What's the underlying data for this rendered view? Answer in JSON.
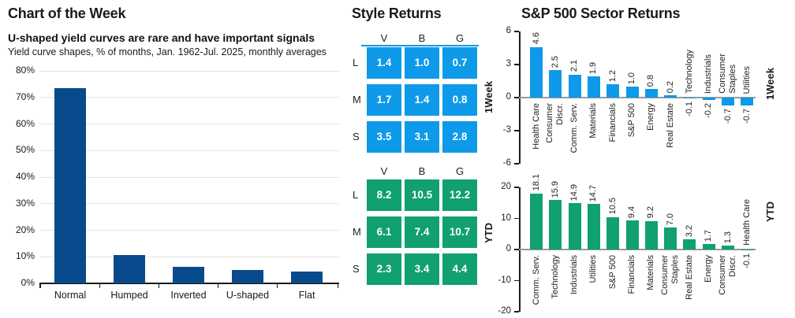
{
  "chart_of_week": {
    "title": "Chart of the Week",
    "headline": "U-shaped yield curves are rare and have important signals",
    "subtitle": "Yield curve shapes, % of months, Jan. 1962-Jul. 2025, monthly averages"
  },
  "style_returns": {
    "title": "Style Returns",
    "week_label": "1Week",
    "ytd_label": "YTD"
  },
  "sector_returns": {
    "title": "S&P 500 Sector Returns",
    "week_label": "1Week",
    "ytd_label": "YTD"
  },
  "colors": {
    "navy": "#084a8c",
    "blue": "#0e9ae8",
    "green": "#10a072",
    "grid_line": "#e3e3e3",
    "zero_line": "#9a9a9a",
    "axis": "#1a1a1a"
  },
  "chart_data": [
    {
      "id": "yield-curve-shapes",
      "type": "bar",
      "title": "Chart of the Week",
      "headline": "U-shaped yield curves are rare and have important signals",
      "note": "Yield curve shapes, % of months, Jan. 1962-Jul. 2025, monthly averages",
      "categories": [
        "Normal",
        "Humped",
        "Inverted",
        "U-shaped",
        "Flat"
      ],
      "values": [
        73.5,
        10.8,
        6.3,
        5.0,
        4.3
      ],
      "unit": "%",
      "ylim": [
        0,
        80
      ],
      "yticks": [
        80,
        70,
        60,
        50,
        40,
        30,
        20,
        10,
        0
      ],
      "grid": true,
      "legend": "none",
      "bar_color": "#084a8c"
    },
    {
      "id": "style-returns-1week",
      "type": "heatmap",
      "title": "Style Returns",
      "period": "1Week",
      "columns": [
        "V",
        "B",
        "G"
      ],
      "rows": [
        "L",
        "M",
        "S"
      ],
      "values": [
        [
          1.4,
          1.0,
          0.7
        ],
        [
          1.7,
          1.4,
          0.8
        ],
        [
          3.5,
          3.1,
          2.8
        ]
      ],
      "cell_color": "#0e9ae8"
    },
    {
      "id": "style-returns-ytd",
      "type": "heatmap",
      "title": "Style Returns",
      "period": "YTD",
      "columns": [
        "V",
        "B",
        "G"
      ],
      "rows": [
        "L",
        "M",
        "S"
      ],
      "values": [
        [
          8.2,
          10.5,
          12.2
        ],
        [
          6.1,
          7.4,
          10.7
        ],
        [
          2.3,
          3.4,
          4.4
        ]
      ],
      "cell_color": "#10a072"
    },
    {
      "id": "sector-returns-1week",
      "type": "bar",
      "title": "S&P 500 Sector Returns",
      "period": "1Week",
      "categories": [
        "Health Care",
        "Consumer\nDiscr.",
        "Comm. Serv.",
        "Materials",
        "Financials",
        "S&P 500",
        "Energy",
        "Real Estate",
        "Technology",
        "Industrials",
        "Consumer\nStaples",
        "Utilities"
      ],
      "values": [
        4.6,
        2.5,
        2.1,
        1.9,
        1.2,
        1.0,
        0.8,
        0.2,
        -0.1,
        -0.2,
        -0.7,
        -0.7
      ],
      "ylim": [
        -6,
        6
      ],
      "yticks": [
        6,
        3,
        0,
        -3,
        -6
      ],
      "grid": false,
      "bar_color": "#0e9ae8"
    },
    {
      "id": "sector-returns-ytd",
      "type": "bar",
      "title": "S&P 500 Sector Returns",
      "period": "YTD",
      "categories": [
        "Comm. Serv.",
        "Technology",
        "Industrials",
        "Utilities",
        "S&P 500",
        "Financials",
        "Materials",
        "Consumer\nStaples",
        "Real Estate",
        "Energy",
        "Consumer\nDiscr.",
        "Health Care"
      ],
      "values": [
        18.1,
        15.9,
        14.9,
        14.7,
        10.5,
        9.4,
        9.2,
        7.0,
        3.2,
        1.7,
        1.3,
        -0.1
      ],
      "ylim": [
        -20,
        20
      ],
      "yticks": [
        20,
        10,
        0,
        -10,
        -20
      ],
      "grid": false,
      "bar_color": "#10a072"
    }
  ]
}
